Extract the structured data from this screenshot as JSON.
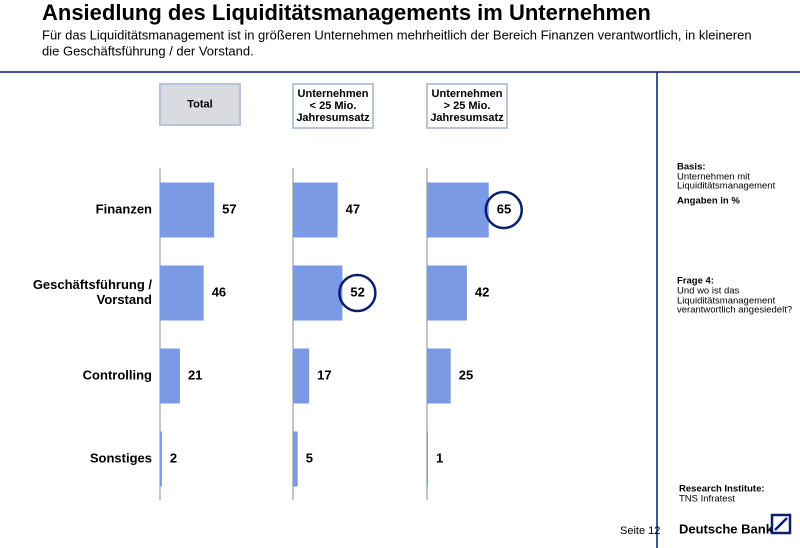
{
  "title": "Ansiedlung des Liquiditätsmanagements im Unternehmen",
  "subtitle": [
    "Für das Liquiditätsmanagement ist in größeren Unternehmen mehrheitlich der Bereich Finanzen verantwortlich, in kleineren",
    "die Geschäftsführung / der Vorstand."
  ],
  "chart_data": [
    {
      "type": "bar",
      "orientation": "horizontal",
      "title": [
        "Total"
      ],
      "categories": [
        "Finanzen",
        [
          "Geschäftsführung /",
          "Vorstand"
        ],
        "Controlling",
        "Sonstiges"
      ],
      "values": [
        57,
        46,
        21,
        2
      ],
      "color": "#7b9ae6",
      "highlighted": []
    },
    {
      "type": "bar",
      "orientation": "horizontal",
      "title": [
        "Unternehmen",
        "< 25 Mio.",
        "Jahresumsatz"
      ],
      "values": [
        47,
        52,
        17,
        5
      ],
      "color": "#7b9ae6",
      "highlighted": [
        1
      ]
    },
    {
      "type": "bar",
      "orientation": "horizontal",
      "title": [
        "Unternehmen",
        "> 25 Mio.",
        "Jahresumsatz"
      ],
      "values": [
        65,
        42,
        25,
        1
      ],
      "color": "#7b9ae6",
      "highlighted": [
        0
      ]
    }
  ],
  "sidebar": {
    "basis_heading": "Basis:",
    "basis": [
      "Unternehmen mit",
      "Liquiditätsmanagement"
    ],
    "units": "Angaben in %",
    "question_heading": "Frage 4:",
    "question": [
      "Und wo ist das",
      "Liquiditätsmanagement",
      "verantwortlich angesiedelt?"
    ],
    "institute_heading": "Research Institute:",
    "institute": "TNS Infratest"
  },
  "footer": {
    "page": "Seite 12",
    "brand": "Deutsche Bank"
  }
}
